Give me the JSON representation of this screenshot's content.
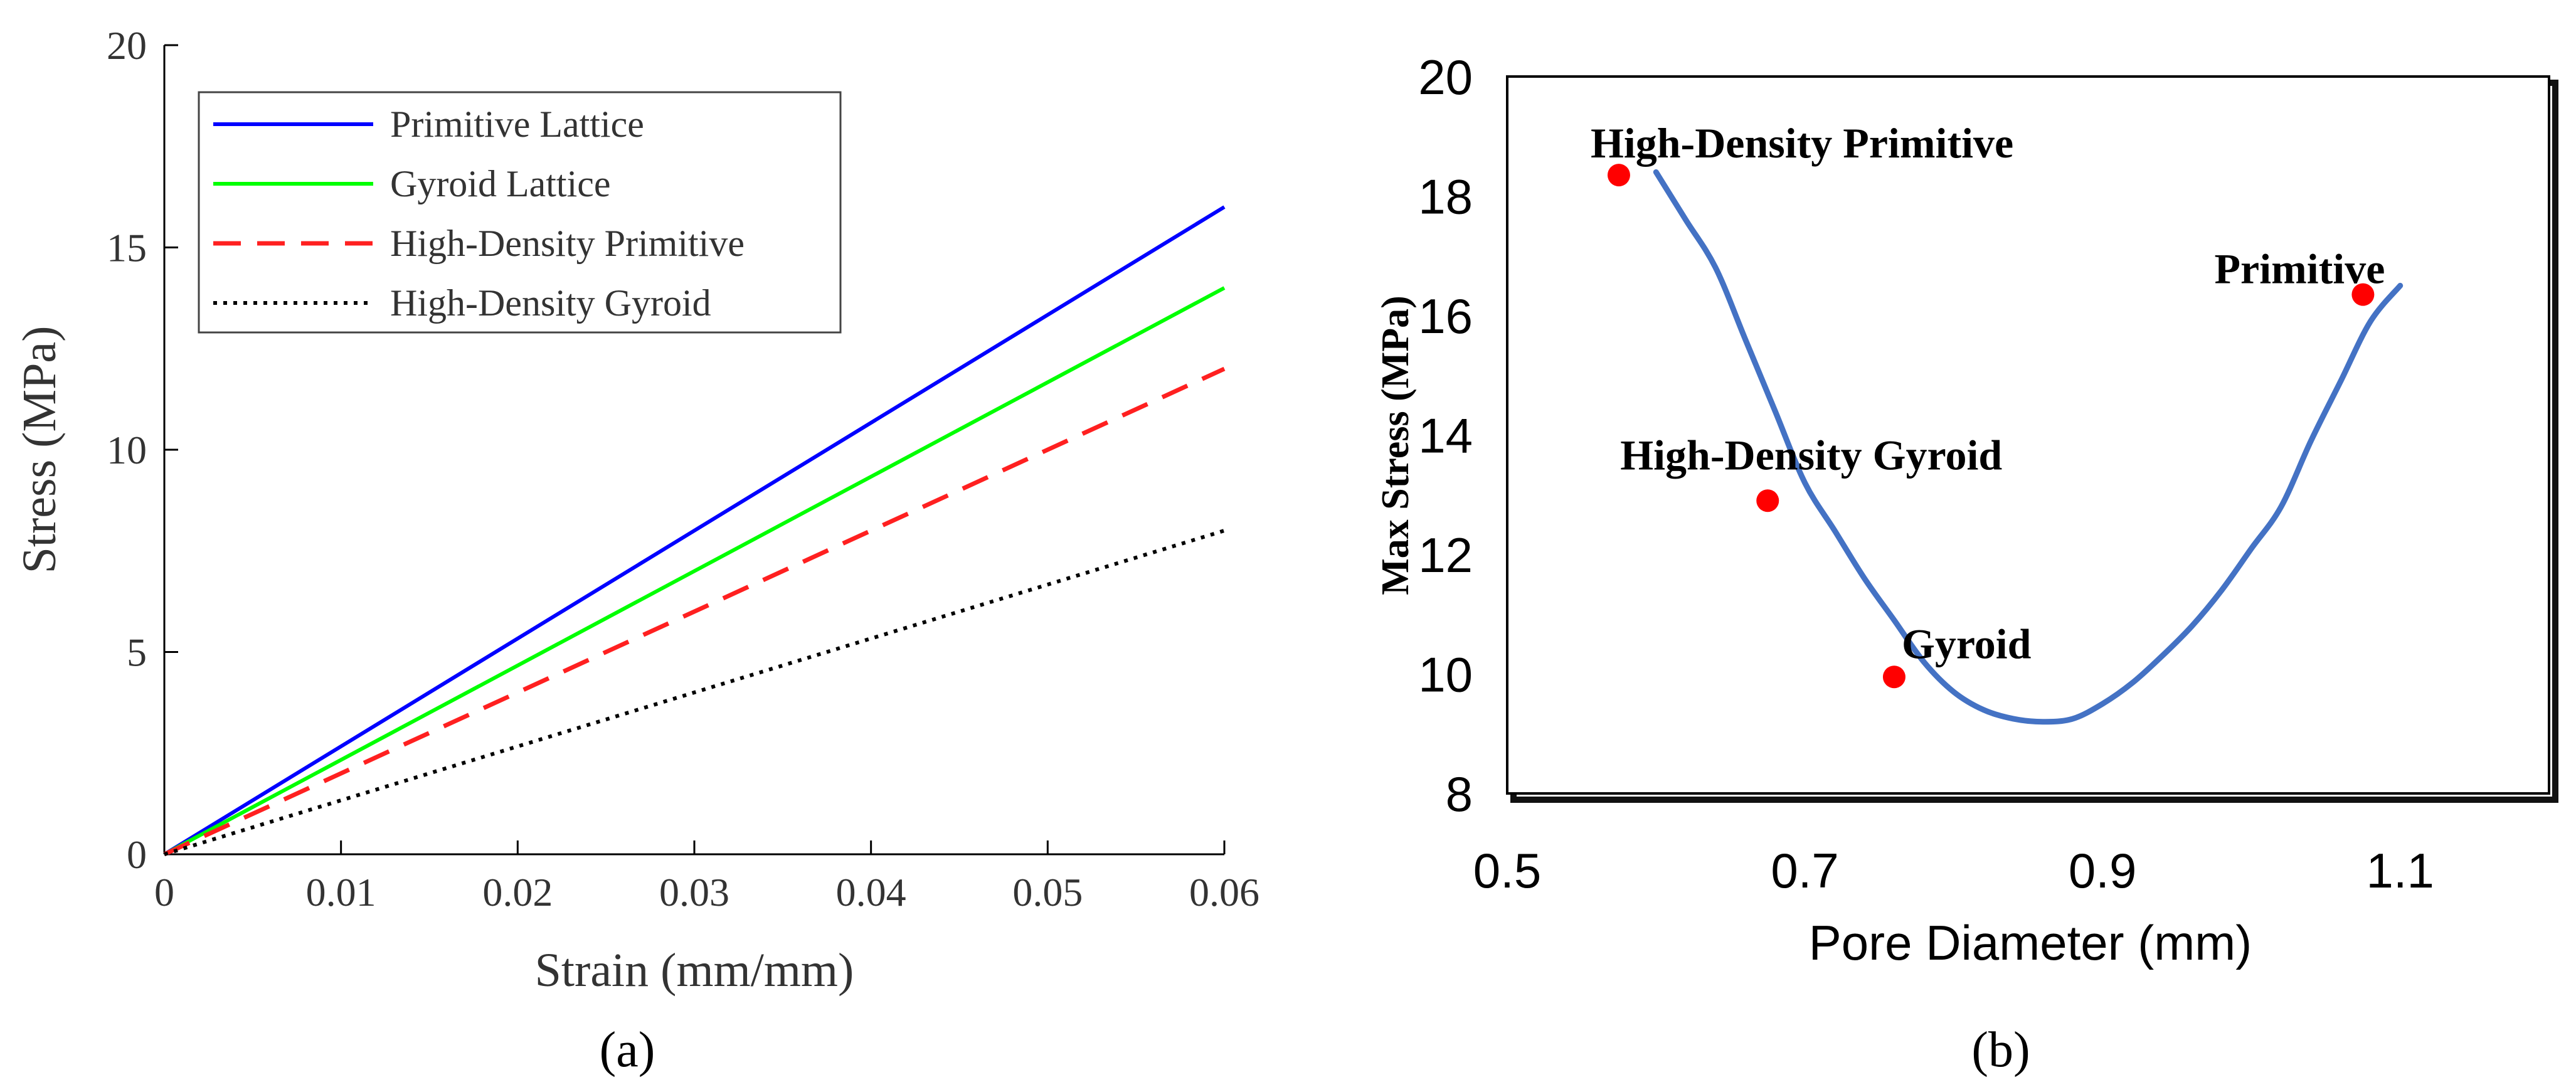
{
  "chart_data": [
    {
      "type": "line",
      "panel_label": "(a)",
      "xlabel": "Strain (mm/mm)",
      "ylabel": "Stress (MPa)",
      "xlim": [
        0,
        0.06
      ],
      "ylim": [
        0,
        20
      ],
      "xticks": [
        0,
        0.01,
        0.02,
        0.03,
        0.04,
        0.05,
        0.06
      ],
      "xtick_labels": [
        "0",
        "0.01",
        "0.02",
        "0.03",
        "0.04",
        "0.05",
        "0.06"
      ],
      "yticks": [
        0,
        5,
        10,
        15,
        20
      ],
      "ytick_labels": [
        "0",
        "5",
        "10",
        "15",
        "20"
      ],
      "legend_position": "top-left",
      "series": [
        {
          "name": "Primitive Lattice",
          "color": "#0000ff",
          "style": "solid",
          "x": [
            0,
            0.06
          ],
          "y": [
            0,
            16
          ]
        },
        {
          "name": "Gyroid Lattice",
          "color": "#00ff00",
          "style": "solid",
          "x": [
            0,
            0.06
          ],
          "y": [
            0,
            14
          ]
        },
        {
          "name": "High-Density Primitive",
          "color": "#ff2020",
          "style": "dashed",
          "x": [
            0,
            0.06
          ],
          "y": [
            0,
            12
          ]
        },
        {
          "name": "High-Density Gyroid",
          "color": "#000000",
          "style": "dotted",
          "x": [
            0,
            0.06
          ],
          "y": [
            0,
            8
          ]
        }
      ]
    },
    {
      "type": "line",
      "panel_label": "(b)",
      "xlabel": "Pore Diameter (mm)",
      "ylabel": "Max Stress (MPa)",
      "xlim": [
        0.5,
        1.2
      ],
      "ylim": [
        8,
        20
      ],
      "xticks": [
        0.5,
        0.7,
        0.9,
        1.1
      ],
      "xtick_labels": [
        "0.5",
        "0.7",
        "0.9",
        "1.1"
      ],
      "yticks": [
        8,
        10,
        12,
        14,
        16,
        18,
        20
      ],
      "ytick_labels": [
        "8",
        "10",
        "12",
        "14",
        "16",
        "18",
        "20"
      ],
      "curve": {
        "color": "#4472c4",
        "x": [
          0.6,
          0.62,
          0.64,
          0.66,
          0.68,
          0.7,
          0.72,
          0.74,
          0.76,
          0.78,
          0.8,
          0.82,
          0.84,
          0.86,
          0.88,
          0.9,
          0.92,
          0.94,
          0.96,
          0.98,
          1.0,
          1.02,
          1.04,
          1.06,
          1.08,
          1.1
        ],
        "y": [
          18.4,
          17.6,
          16.8,
          15.6,
          14.4,
          13.2,
          12.4,
          11.6,
          10.9,
          10.2,
          9.7,
          9.4,
          9.25,
          9.2,
          9.25,
          9.5,
          9.85,
          10.3,
          10.8,
          11.4,
          12.1,
          12.8,
          13.9,
          14.9,
          15.9,
          16.5
        ]
      },
      "points": [
        {
          "label": "High-Density Primitive",
          "x": 0.575,
          "y": 18.35,
          "color": "#ff0000"
        },
        {
          "label": "High-Density Gyroid",
          "x": 0.675,
          "y": 12.9,
          "color": "#ff0000"
        },
        {
          "label": "Gyroid",
          "x": 0.76,
          "y": 9.95,
          "color": "#ff0000"
        },
        {
          "label": "Primitive",
          "x": 1.075,
          "y": 16.35,
          "color": "#ff0000"
        }
      ]
    }
  ]
}
